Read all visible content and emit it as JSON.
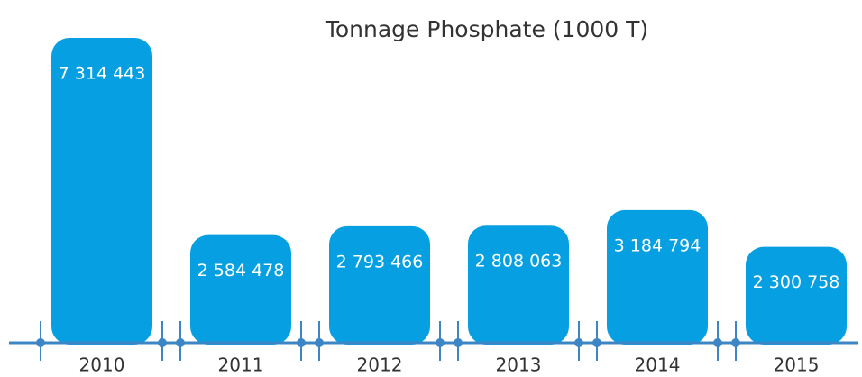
{
  "chart_data": {
    "type": "bar",
    "title": "Tonnage Phosphate (1000 T)",
    "categories": [
      "2010",
      "2011",
      "2012",
      "2013",
      "2014",
      "2015"
    ],
    "values": [
      7314443,
      2584478,
      2793466,
      2808063,
      3184794,
      2300758
    ],
    "value_labels": [
      "7 314 443",
      "2 584 478",
      "2 793 466",
      "2 808 063",
      "3 184 794",
      "2 300 758"
    ],
    "color": "#06a0e2"
  }
}
